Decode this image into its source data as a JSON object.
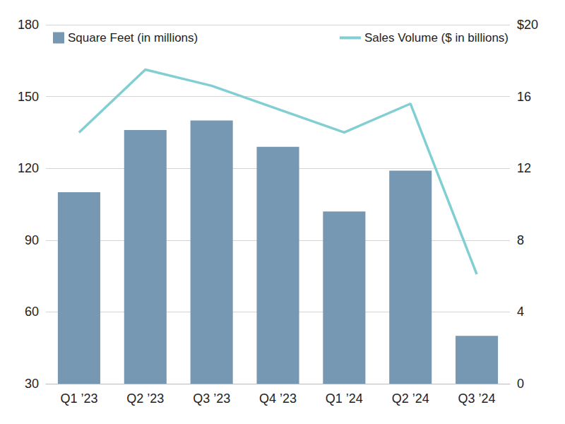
{
  "chart_data": {
    "type": "bar",
    "categories": [
      "Q1 ’23",
      "Q2 ’23",
      "Q3 ’23",
      "Q4 ’23",
      "Q1 ’24",
      "Q2 ’24",
      "Q3 ’24"
    ],
    "series": [
      {
        "name": "Square Feet (in millions)",
        "type": "bar",
        "color": "#7698b3",
        "axis": "y",
        "values": [
          110,
          136,
          140,
          129,
          102,
          119,
          50
        ]
      },
      {
        "name": "Sales Volume ($ in billions)",
        "type": "line",
        "color": "#82cfd3",
        "axis": "y2",
        "values": [
          14.0,
          17.5,
          16.6,
          15.3,
          14.0,
          15.6,
          6.1
        ]
      }
    ],
    "ylim": [
      30,
      180
    ],
    "yticks": [
      30,
      60,
      90,
      120,
      150,
      180
    ],
    "y2lim": [
      0,
      20
    ],
    "y2ticks": [
      0,
      4,
      8,
      12,
      16,
      {
        "value": 20,
        "label": "$20"
      }
    ],
    "grid": true,
    "legend": "top"
  }
}
